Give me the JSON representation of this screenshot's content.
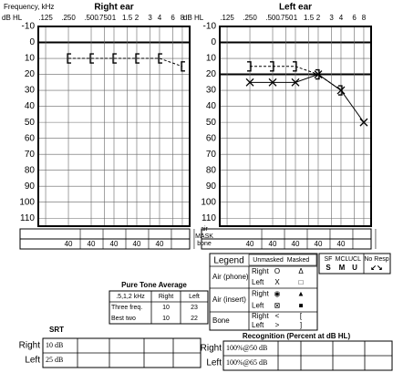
{
  "chart_data": [
    {
      "type": "line",
      "title": "Right ear",
      "x_label": "Frequency, kHz",
      "y_label": "dB HL",
      "xscale": "log",
      "xlim": [
        0.1,
        10
      ],
      "xticks": [
        {
          "value": 0.125,
          "label": ".125"
        },
        {
          "value": 0.25,
          "label": ".250"
        },
        {
          "value": 0.5,
          "label": ".500"
        },
        {
          "value": 0.75,
          "label": ".750"
        },
        1,
        1.5,
        2,
        3,
        4,
        6,
        8
      ],
      "ylim": [
        -10,
        115
      ],
      "yticks": [
        -10,
        0,
        10,
        20,
        30,
        40,
        50,
        60,
        70,
        80,
        90,
        100,
        110
      ],
      "grid": true,
      "bold_grid": [
        0
      ],
      "y_reversed": true,
      "x": [
        0.25,
        0.5,
        1,
        2,
        4,
        8
      ],
      "series": [
        {
          "color": "#000000",
          "marker": "bracket-left",
          "line": "dashed",
          "values": [
            10,
            10,
            10,
            10,
            10,
            15
          ]
        }
      ],
      "mask_bone": [
        40,
        40,
        40,
        40,
        40,
        null
      ]
    },
    {
      "type": "line",
      "title": "Left ear",
      "y_label": "dB HL",
      "xscale": "log",
      "xlim": [
        0.1,
        10
      ],
      "xticks": [
        {
          "value": 0.125,
          "label": ".125"
        },
        {
          "value": 0.25,
          "label": ".250"
        },
        {
          "value": 0.5,
          "label": ".500"
        },
        {
          "value": 0.75,
          "label": ".750"
        },
        1,
        1.5,
        2,
        3,
        4,
        6,
        8
      ],
      "ylim": [
        -10,
        115
      ],
      "yticks": [
        -10,
        0,
        10,
        20,
        30,
        40,
        50,
        60,
        70,
        80,
        90,
        100,
        110
      ],
      "grid": true,
      "bold_grid": [
        0,
        20
      ],
      "y_reversed": true,
      "x": [
        0.25,
        0.5,
        1,
        2,
        4,
        8
      ],
      "series": [
        {
          "color": "#000000",
          "marker": "cross",
          "line": "solid",
          "values": [
            25,
            25,
            25,
            20,
            30,
            50
          ]
        },
        {
          "color": "#000000",
          "marker": "bracket-right",
          "line": "dashed",
          "values": [
            15,
            15,
            15,
            20,
            30,
            null
          ]
        }
      ],
      "mask_bone": [
        40,
        40,
        40,
        40,
        40,
        null
      ]
    }
  ],
  "mask_labels": [
    "air",
    "MASK",
    "bone"
  ],
  "legend": {
    "title": "Legend",
    "header": [
      "Unmasked",
      "Masked"
    ],
    "rows": [
      {
        "label": "Air (phone)",
        "sub": [
          [
            "Right",
            "O",
            "Δ"
          ],
          [
            "Left",
            "X",
            "□"
          ]
        ]
      },
      {
        "label": "Air (insert)",
        "sub": [
          [
            "Right",
            "◉",
            "▲"
          ],
          [
            "Left",
            "⊠",
            "■"
          ]
        ]
      },
      {
        "label": "Bone",
        "sub": [
          [
            "Right",
            "<",
            "["
          ],
          [
            "Left",
            ">",
            "]"
          ]
        ]
      }
    ]
  },
  "response_box": {
    "header": [
      "SF",
      "MCL",
      "UCL",
      "No Resp"
    ],
    "symbols": [
      "S",
      "M",
      "U",
      "↙↘"
    ]
  },
  "pta": {
    "title": "Pure Tone Average",
    "header": [
      ".5,1,2 kHz",
      "Right",
      "Left"
    ],
    "rows": [
      [
        "Three freq.",
        "10",
        "23"
      ],
      [
        "Best two",
        "10",
        "22"
      ]
    ]
  },
  "srt": {
    "title": "SRT",
    "rows": [
      [
        "Right",
        "10 dB"
      ],
      [
        "Left",
        "25 dB"
      ]
    ]
  },
  "recognition": {
    "title": "Recognition (Percent at dB HL)",
    "rows": [
      [
        "Right",
        "100%@50 dB"
      ],
      [
        "Left",
        "100%@65 dB"
      ]
    ]
  }
}
